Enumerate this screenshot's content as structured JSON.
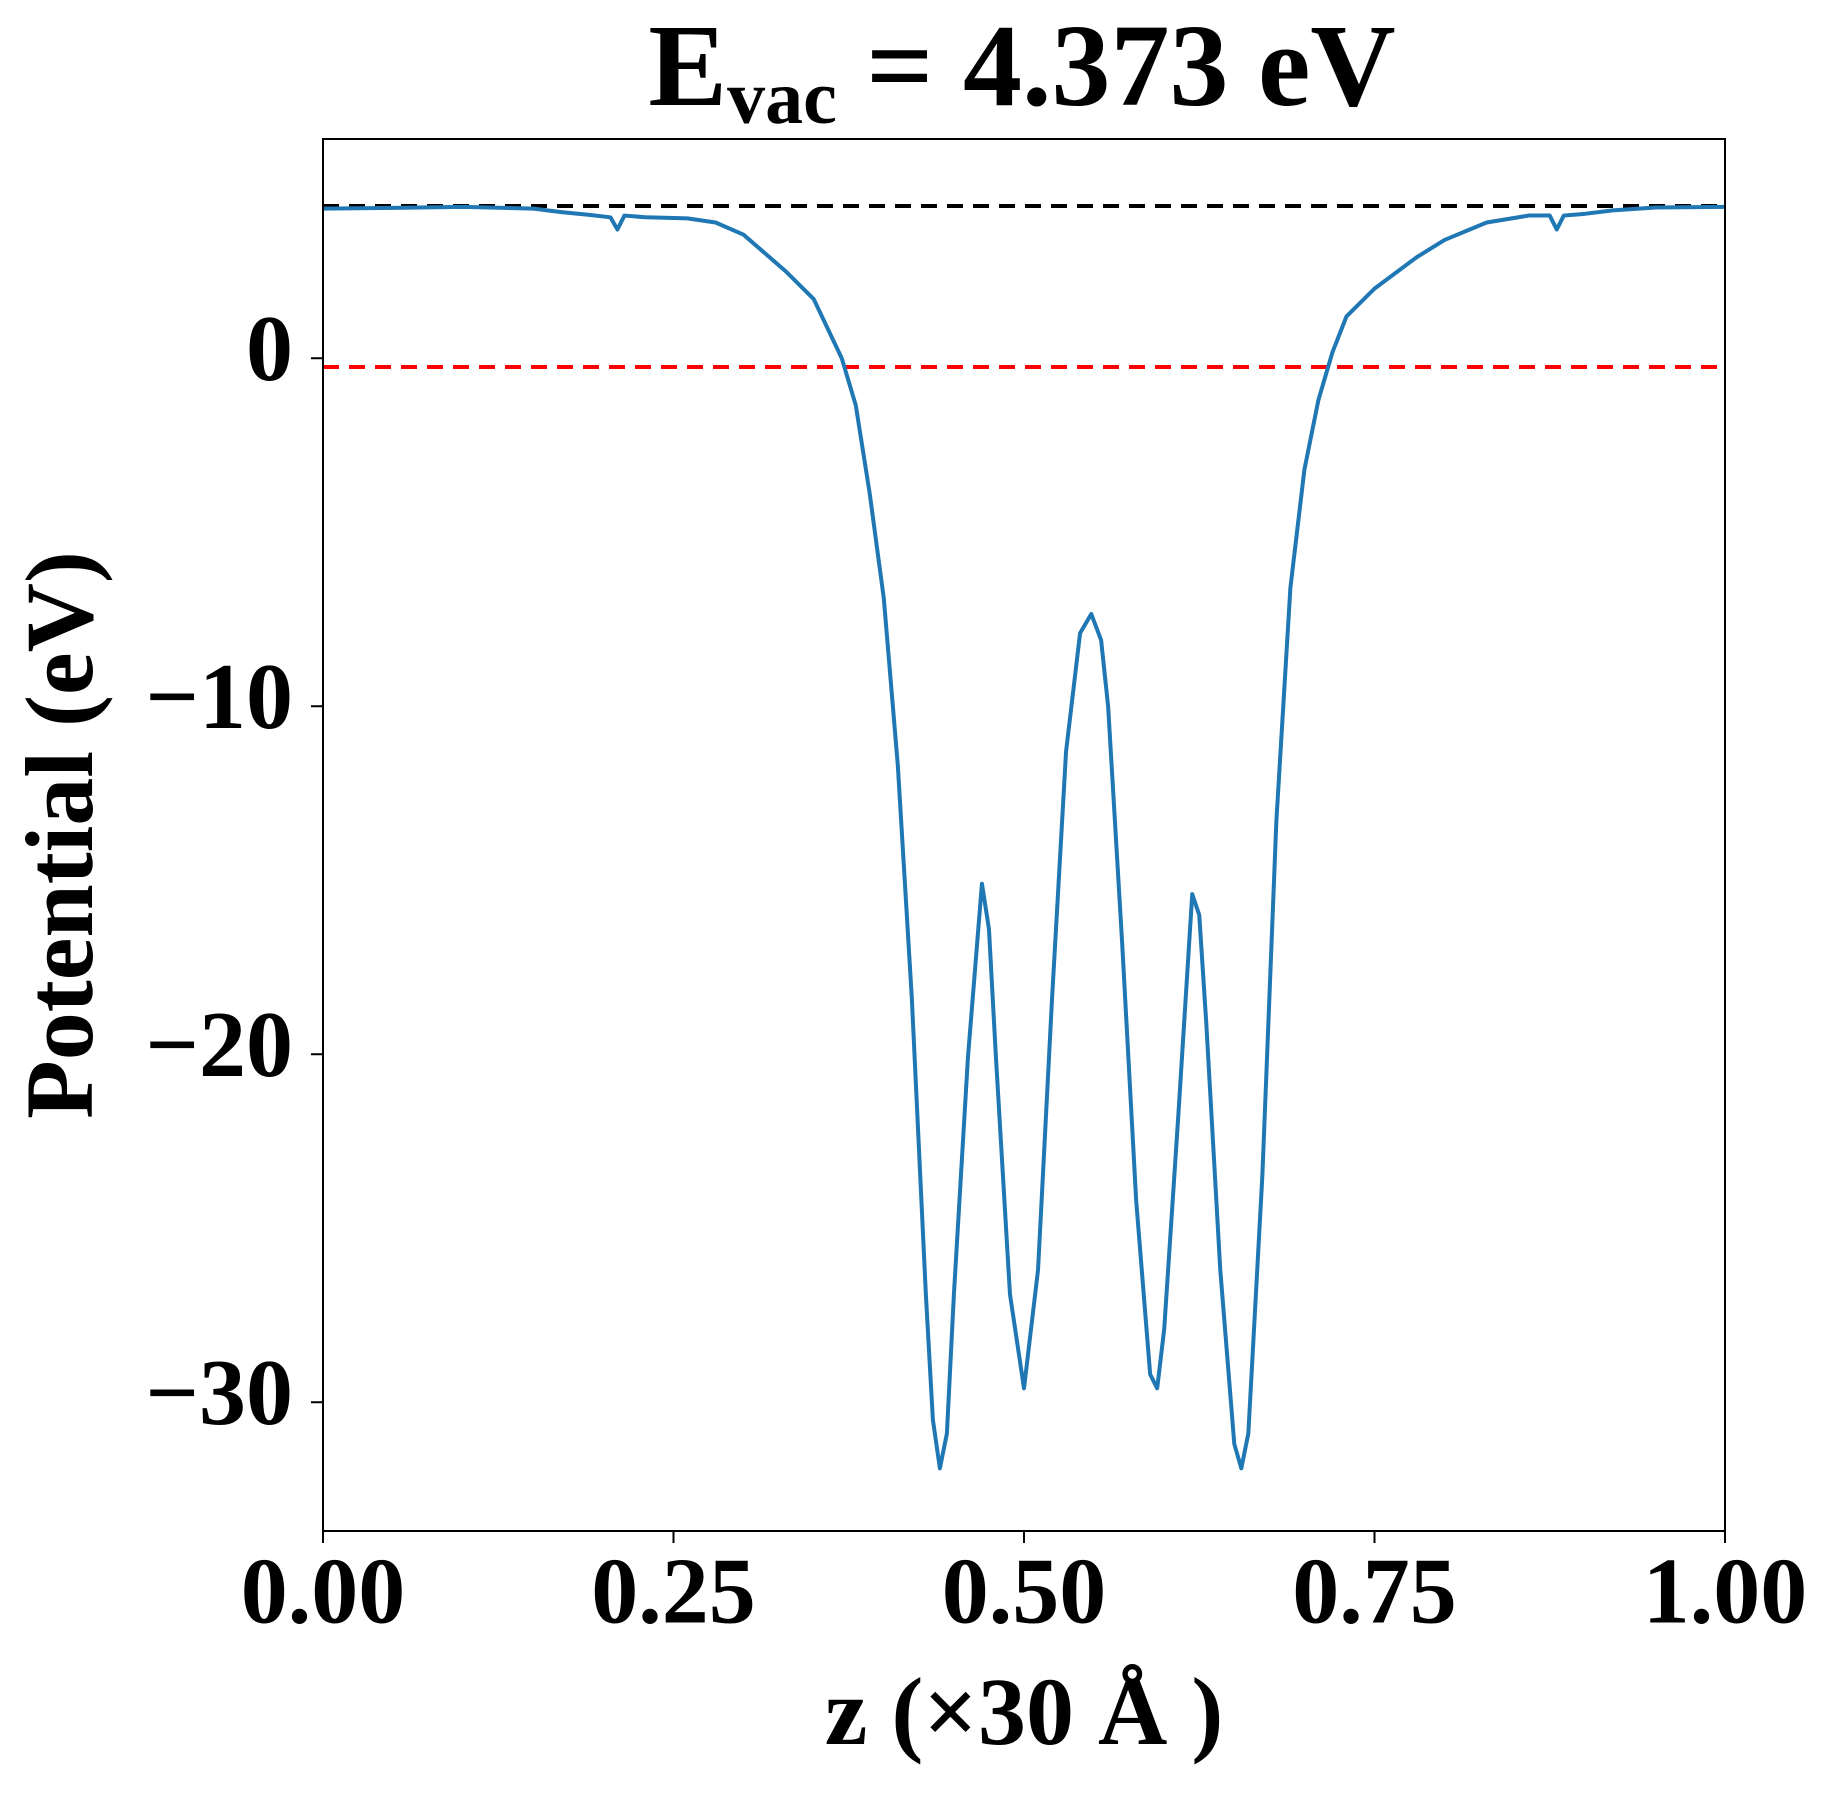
{
  "chart_data": {
    "type": "line",
    "title": {
      "main": "E",
      "sub": "vac",
      "rest": " = 4.373 eV"
    },
    "xlabel": "z (×30 Å )",
    "ylabel": "Potential (eV)",
    "x": [
      0,
      0.05,
      0.1,
      0.15,
      0.17,
      0.19,
      0.205,
      0.21,
      0.215,
      0.23,
      0.26,
      0.28,
      0.3,
      0.33,
      0.35,
      0.36,
      0.37,
      0.38,
      0.39,
      0.4,
      0.41,
      0.42,
      0.43,
      0.435,
      0.44,
      0.445,
      0.45,
      0.46,
      0.47,
      0.475,
      0.48,
      0.49,
      0.5,
      0.51,
      0.52,
      0.53,
      0.54,
      0.548,
      0.555,
      0.56,
      0.57,
      0.58,
      0.59,
      0.595,
      0.6,
      0.61,
      0.62,
      0.625,
      0.63,
      0.64,
      0.65,
      0.655,
      0.66,
      0.67,
      0.68,
      0.69,
      0.7,
      0.71,
      0.72,
      0.73,
      0.75,
      0.78,
      0.8,
      0.83,
      0.86,
      0.875,
      0.88,
      0.885,
      0.9,
      0.92,
      0.95,
      1.0
    ],
    "series": [
      {
        "name": "potential",
        "color": "#1f77b4",
        "values": [
          4.3,
          4.32,
          4.35,
          4.3,
          4.2,
          4.12,
          4.05,
          3.7,
          4.1,
          4.05,
          4.02,
          3.9,
          3.55,
          2.5,
          1.7,
          0.85,
          0.0,
          -1.35,
          -3.9,
          -6.9,
          -11.7,
          -18.4,
          -26.9,
          -30.5,
          -31.9,
          -30.9,
          -26.9,
          -20.1,
          -15.1,
          -16.4,
          -20.1,
          -26.9,
          -29.6,
          -26.2,
          -18.4,
          -11.3,
          -7.9,
          -7.35,
          -8.1,
          -10,
          -16.8,
          -24.2,
          -29.2,
          -29.6,
          -27.9,
          -21.8,
          -15.4,
          -16.0,
          -19.1,
          -26.2,
          -31.2,
          -31.9,
          -30.9,
          -23.5,
          -13.3,
          -6.6,
          -3.2,
          -1.2,
          0.17,
          1.2,
          2.0,
          2.9,
          3.4,
          3.9,
          4.1,
          4.1,
          3.7,
          4.1,
          4.15,
          4.25,
          4.33,
          4.35
        ]
      }
    ],
    "hlines": [
      {
        "value": 4.373,
        "color": "#000000"
      },
      {
        "value": -0.25,
        "color": "#ff0000"
      }
    ],
    "xlim": [
      0,
      1
    ],
    "xticks": [
      {
        "value": 0,
        "label": "0.00"
      },
      {
        "value": 0.25,
        "label": "0.25"
      },
      {
        "value": 0.5,
        "label": "0.50"
      },
      {
        "value": 0.75,
        "label": "0.75"
      },
      {
        "value": 1,
        "label": "1.00"
      }
    ],
    "ylim": [
      -33.7,
      6.3
    ],
    "yticks": [
      0,
      {
        "value": -10,
        "label": "−10"
      },
      {
        "value": -20,
        "label": "−20"
      },
      {
        "value": -30,
        "label": "−30"
      }
    ],
    "grid": false
  }
}
